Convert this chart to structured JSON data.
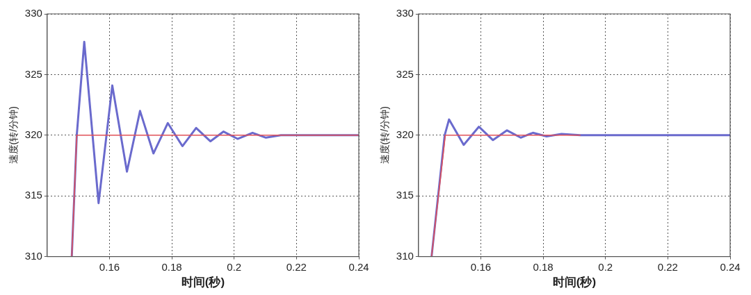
{
  "chart_data": [
    {
      "type": "line",
      "xlabel": "时间(秒)",
      "ylabel": "速度(转/分钟)",
      "xlim": [
        0.14,
        0.24
      ],
      "ylim": [
        310,
        330
      ],
      "xticks": [
        0.16,
        0.18,
        0.2,
        0.22,
        0.24
      ],
      "yticks": [
        310,
        315,
        320,
        325,
        330
      ],
      "grid": true,
      "legend": false,
      "line_style": "solid",
      "marker": "none",
      "series": [
        {
          "color": "#e05058",
          "x": [
            0.1479,
            0.1495,
            0.24
          ],
          "values": [
            310,
            320,
            320
          ]
        },
        {
          "color": "#6a6acd",
          "x": [
            0.1479,
            0.1495,
            0.1519,
            0.1565,
            0.1609,
            0.1656,
            0.1698,
            0.1741,
            0.1787,
            0.1834,
            0.1878,
            0.1924,
            0.1966,
            0.2011,
            0.2059,
            0.2102,
            0.215,
            0.24
          ],
          "values": [
            310,
            320,
            327.7,
            314.4,
            324.1,
            317,
            322,
            318.5,
            321,
            319.1,
            320.6,
            319.5,
            320.3,
            319.7,
            320.2,
            319.8,
            320,
            320
          ]
        }
      ]
    },
    {
      "type": "line",
      "xlabel": "时间(秒)",
      "ylabel": "速度(转/分钟)",
      "xlim": [
        0.14,
        0.24
      ],
      "ylim": [
        310,
        330
      ],
      "xticks": [
        0.16,
        0.18,
        0.2,
        0.22,
        0.24
      ],
      "yticks": [
        310,
        315,
        320,
        325,
        330
      ],
      "grid": true,
      "legend": false,
      "line_style": "solid",
      "marker": "none",
      "series": [
        {
          "color": "#e05058",
          "x": [
            0.1442,
            0.1486,
            0.192
          ],
          "values": [
            310,
            320,
            320
          ]
        },
        {
          "color": "#6a6acd",
          "x": [
            0.1442,
            0.1484,
            0.1498,
            0.1545,
            0.1594,
            0.1639,
            0.1684,
            0.1728,
            0.1767,
            0.1811,
            0.1859,
            0.1919,
            0.24
          ],
          "values": [
            310,
            320,
            321.3,
            319.2,
            320.7,
            319.6,
            320.4,
            319.8,
            320.2,
            319.9,
            320.1,
            320,
            320
          ]
        }
      ]
    }
  ]
}
